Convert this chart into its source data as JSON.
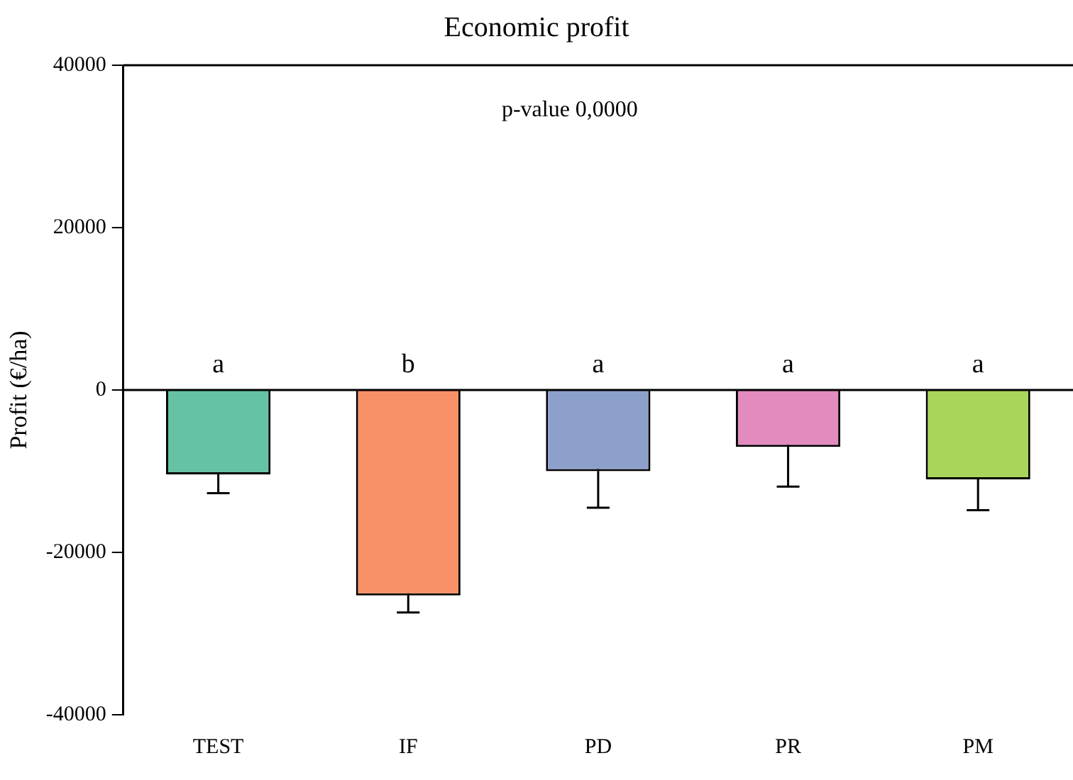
{
  "chart_data": {
    "type": "bar",
    "title": "Economic profit",
    "ylabel": "Profit (€/ha)",
    "categories": [
      "TEST",
      "IF",
      "PD",
      "PR",
      "PM"
    ],
    "values": [
      -10400,
      -25300,
      -10000,
      -7000,
      -11000
    ],
    "errors": [
      2300,
      2100,
      4500,
      4900,
      3800
    ],
    "ref_lines": [
      {
        "axis": "y",
        "value": 0,
        "color": "#000000"
      }
    ],
    "colors": [
      "#66c2a5",
      "#f79066",
      "#8da0cb",
      "#e38bbf",
      "#a8d65a"
    ],
    "ylim": [
      -40000,
      40000
    ],
    "yticks": [
      -40000,
      -20000,
      0,
      20000,
      40000
    ],
    "grid": false,
    "legend": false,
    "annotations": [
      "p-value 0,0000",
      {
        "text": "a",
        "x": "TEST",
        "y": 0
      },
      {
        "text": "b",
        "x": "IF",
        "y": 0
      },
      {
        "text": "a",
        "x": "PD",
        "y": 0
      },
      {
        "text": "a",
        "x": "PR",
        "y": 0
      },
      {
        "text": "a",
        "x": "PM",
        "y": 0
      }
    ]
  }
}
